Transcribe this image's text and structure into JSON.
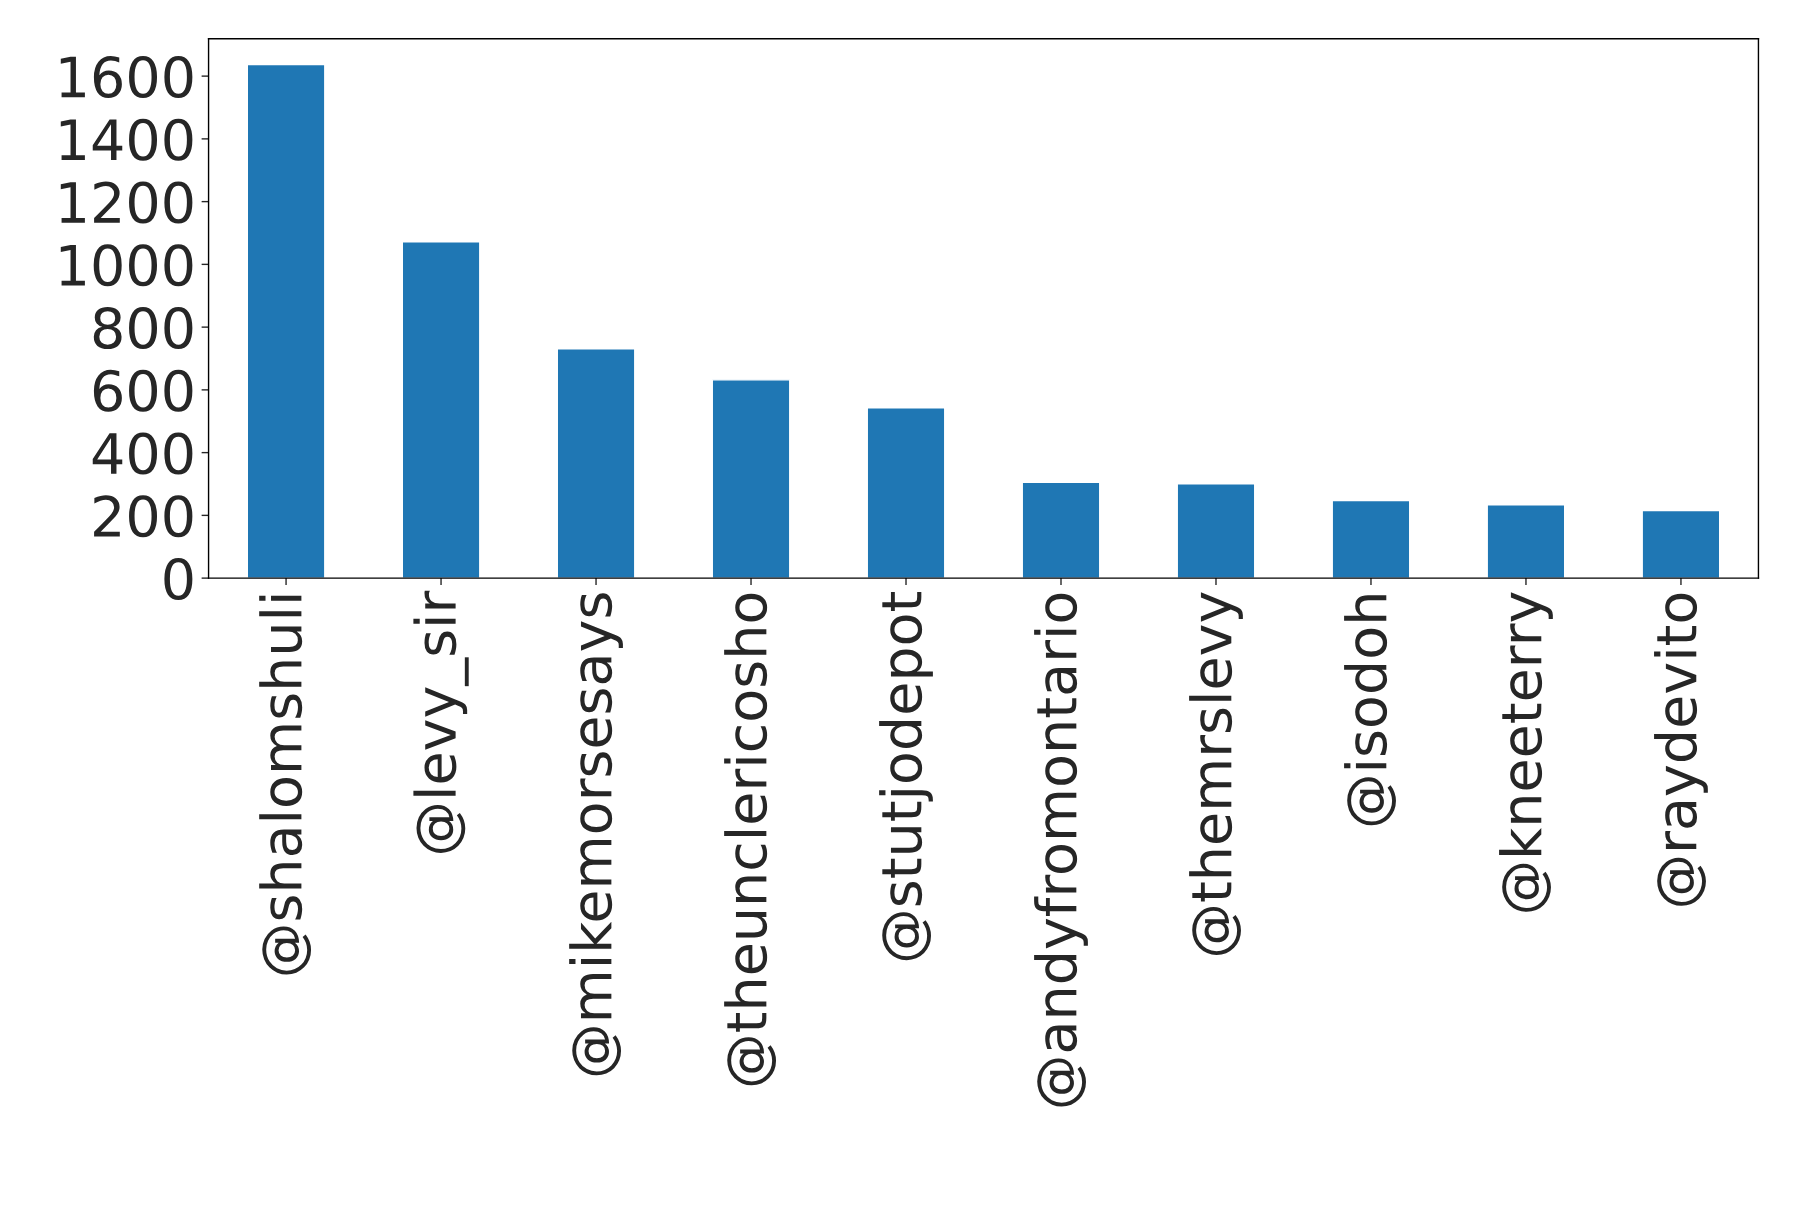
{
  "chart_data": {
    "type": "bar",
    "categories": [
      "@shalomshuli",
      "@levy_sir",
      "@mikemorsesays",
      "@theunclericosho",
      "@stutjodepot",
      "@andyfromontario",
      "@themrslevy",
      "@isodoh",
      "@kneeterry",
      "@raydevito"
    ],
    "values": [
      1637,
      1072,
      731,
      632,
      543,
      305,
      301,
      247,
      234,
      215
    ],
    "color": "#1f77b4",
    "ylim": [
      0,
      1719
    ],
    "yticks": [
      0,
      200,
      400,
      600,
      800,
      1000,
      1200,
      1400,
      1600
    ],
    "grid": false,
    "legend": false
  }
}
